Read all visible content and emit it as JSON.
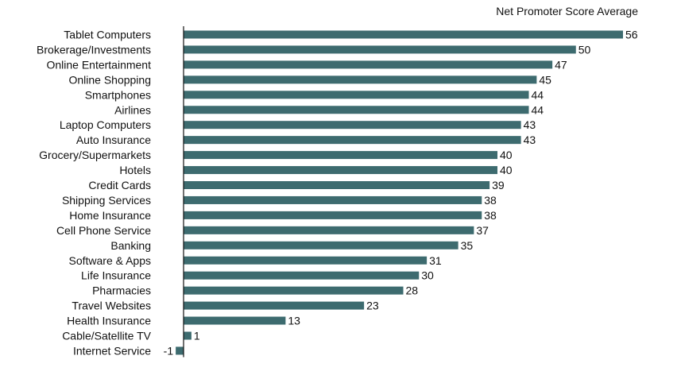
{
  "chart_data": {
    "type": "bar",
    "orientation": "horizontal",
    "title": "Net Promoter Score Average",
    "xlabel": "",
    "ylabel": "",
    "bar_color": "#3d6b6f",
    "grid": false,
    "categories": [
      "Tablet Computers",
      "Brokerage/Investments",
      "Online Entertainment",
      "Online Shopping",
      "Smartphones",
      "Airlines",
      "Laptop Computers",
      "Auto Insurance",
      "Grocery/Supermarkets",
      "Hotels",
      "Credit Cards",
      "Shipping Services",
      "Home Insurance",
      "Cell Phone Service",
      "Banking",
      "Software & Apps",
      "Life Insurance",
      "Pharmacies",
      "Travel Websites",
      "Health Insurance",
      "Cable/Satellite TV",
      "Internet Service"
    ],
    "values": [
      56,
      50,
      47,
      45,
      44,
      44,
      43,
      43,
      40,
      40,
      39,
      38,
      38,
      37,
      35,
      31,
      30,
      28,
      23,
      13,
      1,
      -1
    ],
    "xlim": [
      -1,
      56
    ]
  }
}
